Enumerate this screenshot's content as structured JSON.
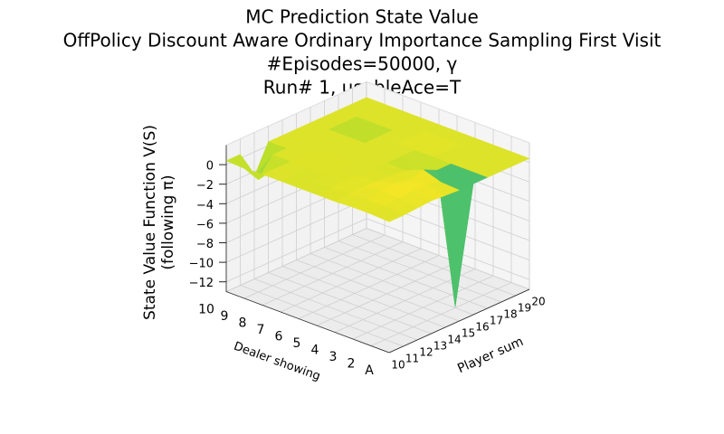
{
  "chart_data": {
    "type": "surface",
    "title": [
      "MC Prediction State Value",
      "OffPolicy Discount Aware Ordinary Importance Sampling First Visit",
      "#Episodes=50000, γ",
      "Run# 1, usableAce=T"
    ],
    "xlabel": "Player sum",
    "ylabel": "Dealer showing",
    "zlabel": [
      "State Value Function V(S)",
      "(following π)"
    ],
    "x": [
      10,
      11,
      12,
      13,
      14,
      15,
      16,
      17,
      18,
      19,
      20
    ],
    "y": [
      "A",
      "2",
      "3",
      "4",
      "5",
      "6",
      "7",
      "8",
      "9",
      "10"
    ],
    "z": [
      [
        0.4,
        0.4,
        0.5,
        0.6,
        0.5,
        0.4,
        0.4,
        0.4,
        0.4,
        0.4,
        0.4
      ],
      [
        0.5,
        0.6,
        0.8,
        0.9,
        1.0,
        0.5,
        -12.9,
        0.4,
        0.4,
        0.4,
        0.4
      ],
      [
        0.5,
        0.6,
        0.9,
        1.0,
        0.6,
        1.1,
        0.4,
        0.4,
        0.4,
        0.4,
        0.4
      ],
      [
        0.4,
        0.5,
        0.6,
        0.5,
        0.4,
        0.3,
        -1.0,
        0.4,
        0.4,
        0.4,
        0.4
      ],
      [
        0.4,
        0.4,
        0.5,
        0.4,
        0.4,
        0.4,
        0.4,
        0.4,
        0.8,
        0.4,
        0.4
      ],
      [
        0.4,
        0.3,
        0.4,
        0.4,
        0.4,
        0.4,
        0.4,
        0.4,
        0.4,
        0.4,
        0.4
      ],
      [
        0.4,
        0.4,
        0.4,
        0.6,
        0.4,
        0.4,
        0.4,
        0.4,
        0.4,
        0.4,
        0.4
      ],
      [
        0.4,
        0.4,
        0.4,
        0.4,
        0.4,
        0.4,
        0.4,
        -2.0,
        0.4,
        0.4,
        0.4
      ],
      [
        0.3,
        -1.5,
        0.4,
        0.4,
        0.4,
        0.4,
        0.4,
        0.4,
        0.4,
        0.4,
        0.4
      ],
      [
        0.4,
        0.4,
        -2.5,
        0.4,
        0.4,
        0.4,
        0.4,
        0.4,
        0.4,
        0.4,
        0.4
      ]
    ],
    "zlim": [
      -13,
      2
    ],
    "zticks": [
      {
        "value": -12,
        "label": "−12"
      },
      {
        "value": -10,
        "label": "−10"
      },
      {
        "value": -8,
        "label": "−8"
      },
      {
        "value": -6,
        "label": "−6"
      },
      {
        "value": -4,
        "label": "−4"
      },
      {
        "value": -2,
        "label": "−2"
      },
      0
    ],
    "colormap": "viridis",
    "grid": true
  }
}
